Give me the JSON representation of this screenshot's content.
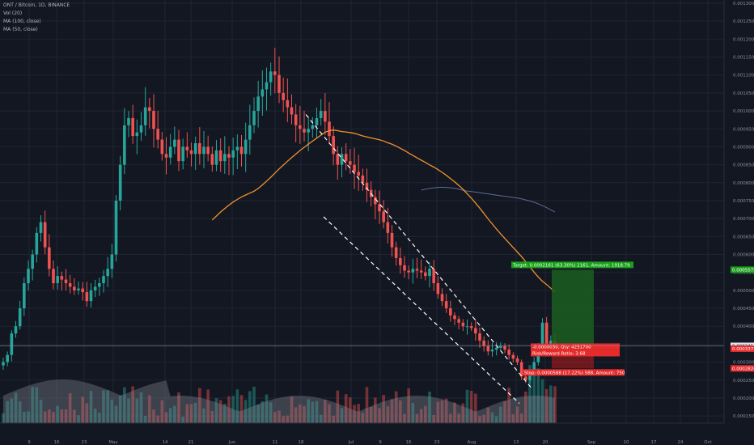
{
  "legend": {
    "symbol": "ONT / Bitcoin, 1D, BINANCE",
    "vol": "Vol (20)",
    "ma100": "MA (100, close)",
    "ma50": "MA (50, close)"
  },
  "colors": {
    "background": "#131722",
    "up": "#26a69a",
    "down": "#ef5350",
    "ma50": "#f0912c",
    "ma100": "#5b6b9a",
    "target_zone": "#1b5e20",
    "stop_zone": "#b71c1c",
    "label_green": "#1aa01a",
    "label_red": "#e52b2b"
  },
  "chart_data": {
    "type": "candlestick",
    "price_axis": {
      "labels": [
        "0.0013000",
        "0.0012500",
        "0.0012000",
        "0.0011500",
        "0.0011000",
        "0.0010500",
        "0.0010000",
        "0.0009500",
        "0.0009000",
        "0.0008500",
        "0.0008000",
        "0.0007500",
        "0.0007000",
        "0.0006500",
        "0.0006000",
        "0.0005500",
        "0.0005000",
        "0.0004500",
        "0.0004000",
        "0.0003500",
        "0.0003000",
        "0.0002500",
        "0.0002000",
        "0.0001500"
      ],
      "ylim": [
        0.00013,
        0.0013
      ]
    },
    "time_axis": {
      "labels": [
        "9",
        "16",
        "23",
        "May",
        "14",
        "21",
        "Jun",
        "11",
        "18",
        "Jul",
        "9",
        "16",
        "23",
        "Aug",
        "13",
        "20",
        "Sep",
        "10",
        "17",
        "24",
        "Oct"
      ]
    },
    "price_tags": [
      {
        "text": "0.0005575",
        "price": 0.0005575,
        "style": "green"
      },
      {
        "text": "0.0003454",
        "price": 0.0003454,
        "style": "white"
      },
      {
        "text": "0.0003375",
        "price": 0.0003375,
        "style": "red"
      },
      {
        "text": "0.0002826",
        "price": 0.0002826,
        "style": "red"
      }
    ],
    "trade": {
      "target_label": "Target: 0.0002161 (63.30%) 2161, Amount: 1918.79",
      "pl_label": "-0.0000030, Qty: 4251700",
      "rr_label": "Risk/Reward Ratio: 3.68",
      "stop_label": "Stop: 0.0000588 (17.22%) 588, Amount: 750"
    },
    "series": [
      {
        "name": "ONT / Bitcoin",
        "kind": "ohlc",
        "close": [
          0.0003,
          0.00032,
          0.00038,
          0.0004,
          0.00045,
          0.00052,
          0.00056,
          0.0006,
          0.00066,
          0.00069,
          0.00062,
          0.00056,
          0.00052,
          0.00054,
          0.00053,
          0.00052,
          0.00051,
          0.0005,
          0.000505,
          0.000495,
          0.00047,
          0.0005,
          0.00051,
          0.00052,
          0.00054,
          0.00056,
          0.0006,
          0.00075,
          0.00085,
          0.00096,
          0.00098,
          0.00093,
          0.00094,
          0.00096,
          0.00101,
          0.001,
          0.00095,
          0.00092,
          0.00088,
          0.00087,
          0.0009,
          0.00092,
          0.00086,
          0.0009,
          0.00089,
          0.00088,
          0.00091,
          0.00088,
          0.0009,
          0.00088,
          0.00085,
          0.00089,
          0.00086,
          0.00088,
          0.00087,
          0.00089,
          0.0009,
          0.00088,
          0.00092,
          0.00096,
          0.001,
          0.00104,
          0.00106,
          0.00108,
          0.00111,
          0.0011,
          0.00105,
          0.00103,
          0.00101,
          0.00099,
          0.00096,
          0.00095,
          0.00094,
          0.00095,
          0.00096,
          0.00098,
          0.001,
          0.00097,
          0.00093,
          0.00088,
          0.00085,
          0.00088,
          0.00086,
          0.00085,
          0.00083,
          0.00082,
          0.0008,
          0.00078,
          0.00076,
          0.00074,
          0.00072,
          0.00069,
          0.00066,
          0.00062,
          0.00059,
          0.00057,
          0.000555,
          0.00055,
          0.00056,
          0.000555,
          0.00055,
          0.00054,
          0.00056,
          0.00052,
          0.00049,
          0.00047,
          0.00045,
          0.00043,
          0.00042,
          0.00041,
          0.0004,
          0.0004,
          0.000395,
          0.00038,
          0.00036,
          0.000345,
          0.00033,
          0.000335,
          0.00034,
          0.000345,
          0.000335,
          0.00032,
          0.00031,
          0.0003,
          0.00026,
          0.00025,
          0.00027,
          0.0003,
          0.00034,
          0.00041,
          0.00035,
          0.00036,
          0.00035
        ]
      },
      {
        "name": "MA (50, close)",
        "kind": "line"
      },
      {
        "name": "MA (100, close)",
        "kind": "line"
      }
    ]
  }
}
